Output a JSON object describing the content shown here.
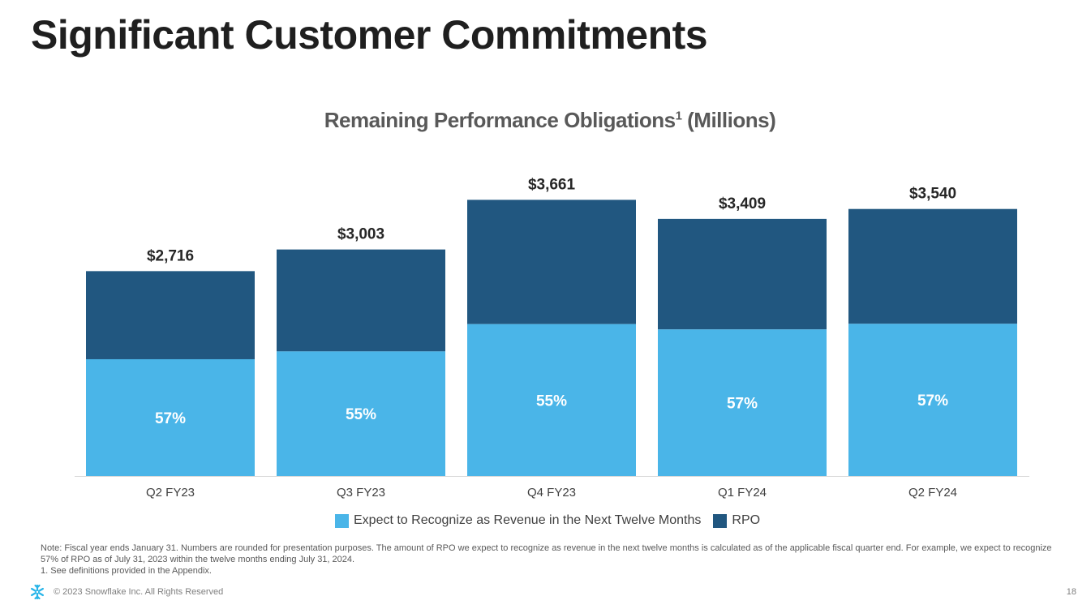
{
  "slide": {
    "title": "Significant Customer Commitments",
    "page_number": "18",
    "copyright": "© 2023 Snowflake Inc. All Rights Reserved",
    "note": "Note: Fiscal year ends January 31. Numbers are rounded for presentation purposes. The amount of RPO we expect to recognize as revenue in the next twelve months is calculated as of the applicable fiscal quarter end. For example, we expect to recognize 57% of RPO as of July 31, 2023 within the twelve months ending July 31, 2024.",
    "footnote": "1.  See definitions provided in the Appendix.",
    "logo_icon": "snowflake-logo-icon"
  },
  "chart_data": {
    "type": "bar",
    "stacked": true,
    "title": "Remaining Performance Obligations",
    "title_superscript": "1",
    "title_suffix": "(Millions)",
    "categories": [
      "Q2 FY23",
      "Q3 FY23",
      "Q4 FY23",
      "Q1 FY24",
      "Q2 FY24"
    ],
    "totals": [
      2716,
      3003,
      3661,
      3409,
      3540
    ],
    "total_labels": [
      "$2,716",
      "$3,003",
      "$3,661",
      "$3,409",
      "$3,540"
    ],
    "ntm_percent": [
      57,
      55,
      55,
      57,
      57
    ],
    "ntm_labels": [
      "57%",
      "55%",
      "55%",
      "57%",
      "57%"
    ],
    "series": [
      {
        "name": "Expect to Recognize as Revenue in the Next Twelve Months",
        "color": "#4AB5E8"
      },
      {
        "name": "RPO",
        "color": "#215780"
      }
    ],
    "ylim": [
      0,
      4300
    ],
    "grid": false,
    "legend_position": "bottom"
  }
}
